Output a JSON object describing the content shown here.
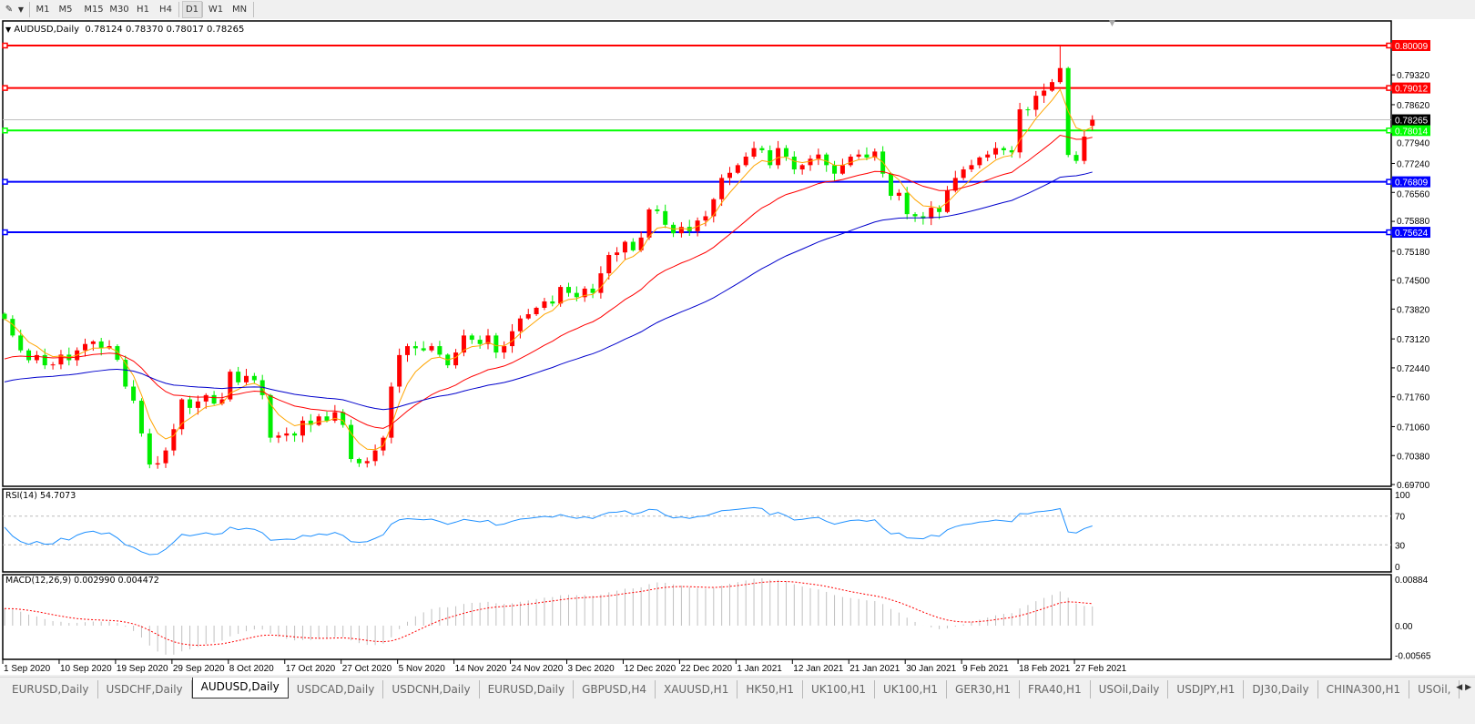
{
  "toolbar": {
    "timeframes": [
      "M1",
      "M5",
      "M15",
      "M30",
      "H1",
      "H4",
      "D1",
      "W1",
      "MN"
    ],
    "active_timeframe": "D1"
  },
  "header": {
    "symbol": "AUDUSD,Daily",
    "ohlc": "0.78124 0.78370 0.78017 0.78265"
  },
  "colors": {
    "bull_candle": "#ff0000",
    "bear_candle": "#00ee00",
    "ma_fast": "#ffa500",
    "ma_mid": "#ff0000",
    "ma_slow": "#0000cc",
    "rsi_line": "#1e90ff",
    "macd_hist": "#c0c0c0",
    "macd_signal": "#ff0000"
  },
  "rsi": {
    "label": "RSI(14) 54.7073",
    "axis": [
      "100",
      "70",
      "30",
      "0"
    ]
  },
  "macd": {
    "label": "MACD(12,26,9) 0.002990 0.004472",
    "axis": [
      "0.00884",
      "0.00",
      "-0.00565"
    ]
  },
  "chart_data": {
    "type": "candlestick",
    "title": "AUDUSD,Daily",
    "ylim": [
      0.697,
      0.8035
    ],
    "y_ticks": [
      "0.79320",
      "0.78620",
      "0.77940",
      "0.77240",
      "0.76560",
      "0.75880",
      "0.75180",
      "0.74500",
      "0.73820",
      "0.73120",
      "0.72440",
      "0.71760",
      "0.71060",
      "0.70380",
      "0.69700"
    ],
    "x_tick_labels": [
      "1 Sep 2020",
      "10 Sep 2020",
      "19 Sep 2020",
      "29 Sep 2020",
      "8 Oct 2020",
      "17 Oct 2020",
      "27 Oct 2020",
      "5 Nov 2020",
      "14 Nov 2020",
      "24 Nov 2020",
      "3 Dec 2020",
      "12 Dec 2020",
      "22 Dec 2020",
      "1 Jan 2021",
      "12 Jan 2021",
      "21 Jan 2021",
      "30 Jan 2021",
      "9 Feb 2021",
      "18 Feb 2021",
      "27 Feb 2021"
    ],
    "closes": [
      0.7359,
      0.732,
      0.7285,
      0.7262,
      0.7274,
      0.725,
      0.7252,
      0.7275,
      0.7262,
      0.7285,
      0.73,
      0.7306,
      0.729,
      0.7295,
      0.7263,
      0.72,
      0.7167,
      0.709,
      0.7017,
      0.702,
      0.705,
      0.71,
      0.717,
      0.715,
      0.7165,
      0.718,
      0.716,
      0.717,
      0.7235,
      0.721,
      0.7225,
      0.7215,
      0.718,
      0.708,
      0.7085,
      0.709,
      0.7085,
      0.712,
      0.711,
      0.713,
      0.712,
      0.714,
      0.711,
      0.703,
      0.702,
      0.7025,
      0.705,
      0.708,
      0.72,
      0.7274,
      0.7295,
      0.729,
      0.7285,
      0.7295,
      0.7275,
      0.725,
      0.728,
      0.732,
      0.731,
      0.73,
      0.732,
      0.728,
      0.7295,
      0.733,
      0.736,
      0.737,
      0.7385,
      0.74,
      0.7395,
      0.7434,
      0.742,
      0.741,
      0.743,
      0.742,
      0.7466,
      0.7509,
      0.7515,
      0.754,
      0.752,
      0.755,
      0.7616,
      0.7612,
      0.758,
      0.756,
      0.7575,
      0.7565,
      0.759,
      0.76,
      0.764,
      0.769,
      0.7702,
      0.772,
      0.774,
      0.776,
      0.7755,
      0.772,
      0.776,
      0.774,
      0.771,
      0.772,
      0.7735,
      0.7745,
      0.772,
      0.77,
      0.772,
      0.774,
      0.7745,
      0.7738,
      0.7752,
      0.77,
      0.7648,
      0.7655,
      0.7605,
      0.76,
      0.7595,
      0.762,
      0.761,
      0.766,
      0.769,
      0.771,
      0.772,
      0.7738,
      0.7745,
      0.776,
      0.7755,
      0.775,
      0.7851,
      0.785,
      0.7883,
      0.7895,
      0.7915,
      0.7948,
      0.7744,
      0.773,
      0.7787,
      0.78265
    ],
    "last_bar": {
      "open": 0.78124,
      "high": 0.7837,
      "low": 0.78017,
      "close": 0.78265
    },
    "peak_high": 0.80009,
    "horizontal_lines": [
      {
        "price": "0.80009",
        "color": "#ff0000"
      },
      {
        "price": "0.79012",
        "color": "#ff0000"
      },
      {
        "price": "0.78014",
        "color": "#00ff00"
      },
      {
        "price": "0.76809",
        "color": "#0000ff"
      },
      {
        "price": "0.75624",
        "color": "#0000ff"
      }
    ],
    "current_price": {
      "price": "0.78265",
      "color": "#000000"
    },
    "moving_averages": [
      "fast (orange)",
      "medium (red)",
      "slow (blue)"
    ],
    "grid": false
  },
  "tabs": [
    {
      "label": "EURUSD,Daily"
    },
    {
      "label": "USDCHF,Daily"
    },
    {
      "label": "AUDUSD,Daily",
      "active": true
    },
    {
      "label": "USDCAD,Daily"
    },
    {
      "label": "USDCNH,Daily"
    },
    {
      "label": "EURUSD,Daily"
    },
    {
      "label": "GBPUSD,H4"
    },
    {
      "label": "XAUUSD,H1"
    },
    {
      "label": "HK50,H1"
    },
    {
      "label": "UK100,H1"
    },
    {
      "label": "UK100,H1"
    },
    {
      "label": "GER30,H1"
    },
    {
      "label": "FRA40,H1"
    },
    {
      "label": "USOil,Daily"
    },
    {
      "label": "USDJPY,H1"
    },
    {
      "label": "DJ30,Daily"
    },
    {
      "label": "CHINA300,H1"
    },
    {
      "label": "USOil,"
    }
  ],
  "tab_arrows": "◀ ▶"
}
